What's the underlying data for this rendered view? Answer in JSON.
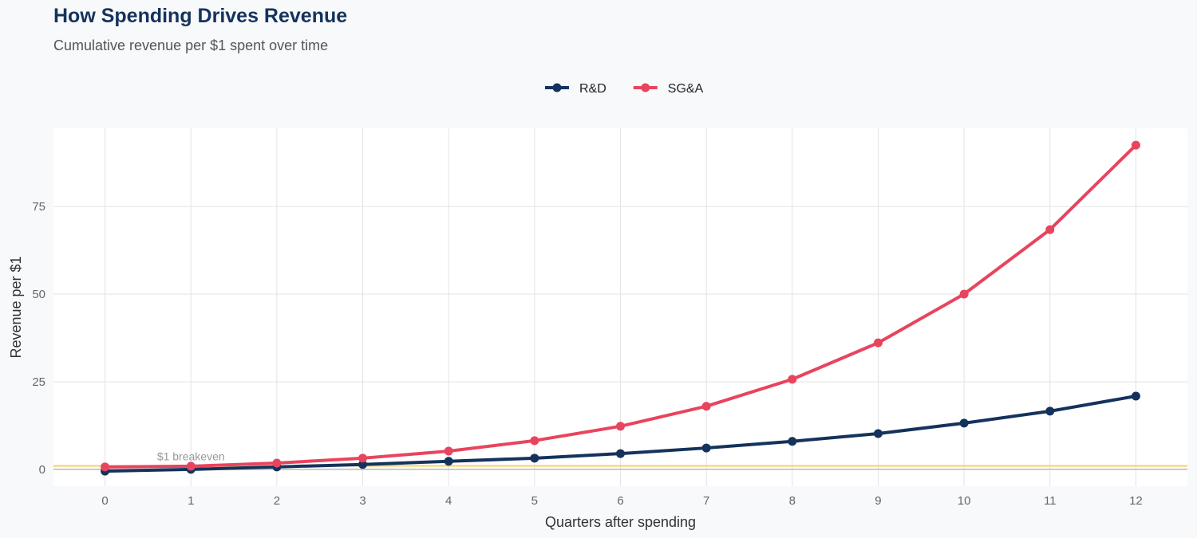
{
  "chart_data": {
    "type": "line",
    "title": "How Spending Drives Revenue",
    "subtitle": "Cumulative revenue per $1 spent over time",
    "xlabel": "Quarters after spending",
    "ylabel": "Revenue per $1",
    "x": [
      0,
      1,
      2,
      3,
      4,
      5,
      6,
      7,
      8,
      9,
      10,
      11,
      12
    ],
    "xlim": [
      -0.6,
      12.6
    ],
    "ylim": [
      -4.8,
      97.3
    ],
    "yticks": [
      0,
      25,
      50,
      75
    ],
    "grid": true,
    "legend_position": "top",
    "series": [
      {
        "name": "R&D",
        "color": "#14335c",
        "values": [
          -0.5,
          0,
          0.7,
          1.4,
          2.3,
          3.2,
          4.5,
          6.1,
          8.0,
          10.2,
          13.2,
          16.6,
          20.9
        ]
      },
      {
        "name": "SG&A",
        "color": "#e8445e",
        "values": [
          0.7,
          0.9,
          1.8,
          3.2,
          5.2,
          8.2,
          12.3,
          18.0,
          25.7,
          36.1,
          50.0,
          68.4,
          92.5
        ]
      }
    ],
    "annotations": [
      {
        "type": "hline",
        "y": 1,
        "color": "#f7c948",
        "label": "$1 breakeven"
      }
    ]
  }
}
